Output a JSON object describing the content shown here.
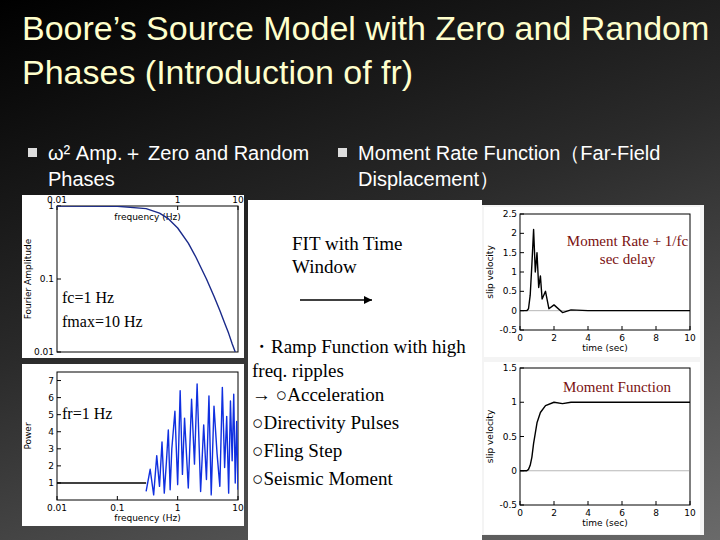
{
  "slide": {
    "title": "Boore’s Source Model with Zero and Random Phases (Introduction of fr)",
    "bullets": [
      "ω² Amp.＋ Zero and Random Phases",
      "Moment Rate Function（Far-Field Displacement）"
    ],
    "fit": "FIT with Time Window",
    "notes": [
      "・Ramp Function with high freq. ripples",
      "→ ○Acceleration",
      "○Directivity Pulses",
      "○Fling Step",
      "○Seismic Moment"
    ]
  },
  "chart_data": [
    {
      "type": "line",
      "log": true,
      "x_label": "frequency (Hz)",
      "y_label": "Fourier Amplitude",
      "xlim": [
        0.01,
        10
      ],
      "ylim": [
        0.01,
        1
      ],
      "xticks": [
        0.01,
        1,
        10
      ],
      "yticks": [
        0.01,
        0.1,
        1
      ],
      "annotations": [
        "fc=1 Hz",
        "fmax=10 Hz"
      ],
      "series": [
        {
          "color": "#1a2a8a",
          "x": [
            0.01,
            0.1,
            0.3,
            0.5,
            0.7,
            1,
            1.5,
            2,
            3,
            4,
            5,
            6,
            7,
            8,
            9
          ],
          "values": [
            1,
            0.99,
            0.92,
            0.8,
            0.67,
            0.5,
            0.31,
            0.2,
            0.1,
            0.058,
            0.037,
            0.025,
            0.018,
            0.013,
            0.01
          ]
        }
      ]
    },
    {
      "type": "line",
      "log": "x",
      "x_label": "frequency (Hz)",
      "y_label": "Power",
      "xlim": [
        0.01,
        10
      ],
      "ylim": [
        0,
        7.5
      ],
      "xticks": [
        0.01,
        0.1,
        1,
        10
      ],
      "yticks": [
        1,
        2,
        3,
        4,
        5,
        6,
        7
      ],
      "annotations": [
        "fr=1 Hz"
      ],
      "series": [
        {
          "color": "#000000",
          "x": [
            0.01,
            0.1,
            0.3
          ],
          "values": [
            1,
            1,
            1
          ]
        },
        {
          "color": "#1030e0",
          "x": [
            0.3,
            0.35,
            0.4,
            0.45,
            0.5,
            0.55,
            0.6,
            0.65,
            0.7,
            0.75,
            0.8,
            0.9,
            1,
            1.1,
            1.2,
            1.3,
            1.5,
            1.7,
            1.9,
            2.1,
            2.4,
            2.7,
            3,
            3.3,
            3.6,
            4,
            4.5,
            5,
            5.5,
            6,
            6.5,
            7,
            7.5,
            8,
            8.5,
            9,
            9.5,
            10
          ],
          "values": [
            0.5,
            1.8,
            0.3,
            2.6,
            0.8,
            3.4,
            0.4,
            2.2,
            4.1,
            0.6,
            3.0,
            5.2,
            0.9,
            6.4,
            1.5,
            4.8,
            0.7,
            5.9,
            2.1,
            6.8,
            0.5,
            4.4,
            1.2,
            6.1,
            0.3,
            5.5,
            2.7,
            0.8,
            6.6,
            1.9,
            4.9,
            0.4,
            5.8,
            2.3,
            6.2,
            1.0,
            4.6,
            0.6
          ]
        }
      ]
    },
    {
      "type": "line",
      "x_label": "time (sec)",
      "y_label": "slip velocity",
      "xlim": [
        0,
        10
      ],
      "ylim": [
        -0.5,
        2.5
      ],
      "xticks": [
        0,
        2,
        4,
        6,
        8,
        10
      ],
      "yticks": [
        -0.5,
        0,
        0.5,
        1,
        1.5,
        2,
        2.5
      ],
      "annotations": [
        "Moment Rate + 1/fc sec delay"
      ],
      "series": [
        {
          "color": "#000000",
          "x": [
            0,
            0.4,
            0.5,
            0.6,
            0.7,
            0.8,
            0.9,
            1.0,
            1.1,
            1.2,
            1.3,
            1.5,
            1.7,
            2,
            2.5,
            3,
            4,
            6,
            8,
            10
          ],
          "values": [
            0,
            0,
            0.05,
            0.4,
            1.2,
            2.1,
            1.0,
            1.5,
            0.6,
            0.9,
            0.3,
            0.5,
            0.05,
            0.15,
            -0.05,
            0.02,
            0,
            0,
            0,
            0
          ]
        }
      ]
    },
    {
      "type": "line",
      "x_label": "time (sec)",
      "y_label": "slip velocity",
      "xlim": [
        0,
        10
      ],
      "ylim": [
        -0.5,
        1.5
      ],
      "xticks": [
        0,
        2,
        4,
        6,
        8,
        10
      ],
      "yticks": [
        -0.5,
        0,
        0.5,
        1,
        1.5
      ],
      "annotations": [
        "Moment Function"
      ],
      "series": [
        {
          "color": "#000000",
          "x": [
            0,
            0.4,
            0.5,
            0.6,
            0.7,
            0.8,
            0.9,
            1.0,
            1.2,
            1.5,
            2,
            2.5,
            3,
            4,
            6,
            8,
            10
          ],
          "values": [
            0,
            0,
            0.02,
            0.08,
            0.2,
            0.4,
            0.55,
            0.7,
            0.85,
            0.95,
            1.0,
            0.98,
            1.0,
            1.0,
            1.0,
            1.0,
            1.0
          ]
        }
      ]
    }
  ]
}
